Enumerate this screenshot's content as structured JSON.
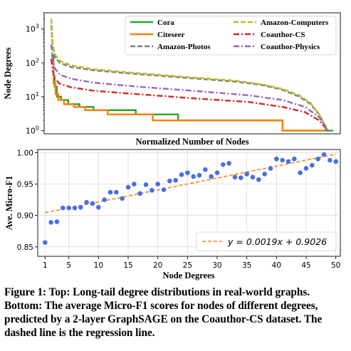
{
  "chart_data": [
    {
      "type": "line",
      "title": "",
      "xlabel": "Normalized Number of Nodes",
      "ylabel": "Node Degrees",
      "yscale": "log",
      "ylim": [
        0.8,
        3000
      ],
      "xlim": [
        0,
        1
      ],
      "yticks": [
        {
          "value": 1,
          "base": "10",
          "exp": "0"
        },
        {
          "value": 10,
          "base": "10",
          "exp": "1"
        },
        {
          "value": 100,
          "base": "10",
          "exp": "2"
        },
        {
          "value": 1000,
          "base": "10",
          "exp": "3"
        }
      ],
      "legend_position": "top-right",
      "series": [
        {
          "name": "Cora",
          "color": "#2ca02c",
          "dash": "solid",
          "x": [
            0.0,
            0.008,
            0.012,
            0.02,
            0.035,
            0.06,
            0.1,
            0.15,
            0.2,
            0.3,
            0.45,
            0.7,
            0.82,
            0.82,
            1.0
          ],
          "y": [
            170,
            40,
            20,
            10,
            8,
            6,
            5,
            4,
            4,
            3,
            2,
            2,
            2,
            1,
            1
          ]
        },
        {
          "name": "Citeseer",
          "color": "#ff7f0e",
          "dash": "solid",
          "x": [
            0.0,
            0.008,
            0.015,
            0.025,
            0.045,
            0.08,
            0.12,
            0.2,
            0.35,
            0.36,
            0.8,
            0.82,
            0.97
          ],
          "y": [
            100,
            25,
            12,
            8,
            6,
            5,
            4,
            3,
            3,
            2,
            2,
            1,
            1
          ]
        },
        {
          "name": "Amazon-Photos",
          "color": "#7f7f7f",
          "dash": "dashed",
          "x": [
            0.0,
            0.005,
            0.012,
            0.03,
            0.07,
            0.15,
            0.3,
            0.5,
            0.65,
            0.75,
            0.82,
            0.88,
            0.92,
            0.95,
            0.97,
            0.98
          ],
          "y": [
            1300,
            300,
            150,
            100,
            75,
            60,
            47,
            35,
            28,
            22,
            16,
            10,
            6,
            3,
            1.5,
            1
          ]
        },
        {
          "name": "Amazon-Computers",
          "color": "#bcbd22",
          "dash": "dashed",
          "x": [
            0.0,
            0.005,
            0.012,
            0.03,
            0.07,
            0.15,
            0.3,
            0.5,
            0.65,
            0.75,
            0.82,
            0.88,
            0.92,
            0.95,
            0.97,
            0.98
          ],
          "y": [
            2000,
            350,
            180,
            115,
            85,
            65,
            50,
            37,
            30,
            23,
            17,
            11,
            6.5,
            3,
            1.5,
            1
          ]
        },
        {
          "name": "Coauthor-CS",
          "color": "#d62728",
          "dash": "dashdot",
          "x": [
            0.0,
            0.005,
            0.012,
            0.03,
            0.07,
            0.15,
            0.3,
            0.5,
            0.7,
            0.82,
            0.9,
            0.95,
            0.98
          ],
          "y": [
            130,
            60,
            35,
            24,
            19,
            15,
            12,
            9,
            7,
            5,
            3.5,
            2,
            1
          ]
        },
        {
          "name": "Coauthor-Physics",
          "color": "#9467bd",
          "dash": "dashdot",
          "x": [
            0.0,
            0.005,
            0.012,
            0.03,
            0.07,
            0.15,
            0.3,
            0.5,
            0.7,
            0.82,
            0.9,
            0.95,
            0.98
          ],
          "y": [
            350,
            120,
            70,
            45,
            34,
            26,
            20,
            15,
            11,
            8,
            5,
            2.5,
            1
          ]
        }
      ]
    },
    {
      "type": "scatter",
      "title": "",
      "xlabel": "Node Degrees",
      "ylabel": "Ave. Micro-F1",
      "xlim": [
        0,
        51
      ],
      "ylim": [
        0.835,
        1.005
      ],
      "xticks": [
        1,
        5,
        10,
        15,
        20,
        25,
        30,
        35,
        40,
        45,
        50
      ],
      "yticks": [
        0.85,
        0.9,
        0.95,
        1.0
      ],
      "ytick_labels": [
        "0.85",
        "0.90",
        "0.95",
        "1.00"
      ],
      "grid": true,
      "legend_position": "lower-right",
      "points": {
        "color": "#4a6fe3",
        "x": [
          1,
          2,
          3,
          4,
          5,
          6,
          7,
          8,
          9,
          10,
          11,
          12,
          13,
          14,
          15,
          16,
          17,
          18,
          19,
          20,
          21,
          22,
          23,
          24,
          25,
          26,
          27,
          28,
          29,
          30,
          31,
          32,
          33,
          34,
          35,
          36,
          37,
          38,
          39,
          40,
          41,
          42,
          43,
          44,
          45,
          46,
          47,
          48,
          49,
          50
        ],
        "y": [
          0.857,
          0.889,
          0.89,
          0.912,
          0.912,
          0.912,
          0.913,
          0.921,
          0.919,
          0.913,
          0.925,
          0.937,
          0.937,
          0.927,
          0.945,
          0.95,
          0.935,
          0.949,
          0.94,
          0.95,
          0.941,
          0.955,
          0.956,
          0.965,
          0.968,
          0.962,
          0.964,
          0.973,
          0.962,
          0.968,
          0.981,
          0.983,
          0.961,
          0.96,
          0.966,
          0.961,
          0.957,
          0.966,
          0.975,
          0.99,
          0.988,
          0.986,
          0.99,
          0.968,
          0.975,
          0.98,
          0.99,
          0.997,
          0.988,
          0.986
        ]
      },
      "regression": {
        "color": "#ff7f0e",
        "dash": "dashed",
        "slope": 0.0019,
        "intercept": 0.9026,
        "label": "y = 0.0019x + 0.9026"
      }
    }
  ],
  "caption": "Figure 1: Top: Long-tail degree distributions in real-world graphs. Bottom: The average Micro-F1 scores for nodes of different degrees, predicted by a 2-layer GraphSAGE on the Coauthor-CS dataset. The dashed line is the regression line."
}
